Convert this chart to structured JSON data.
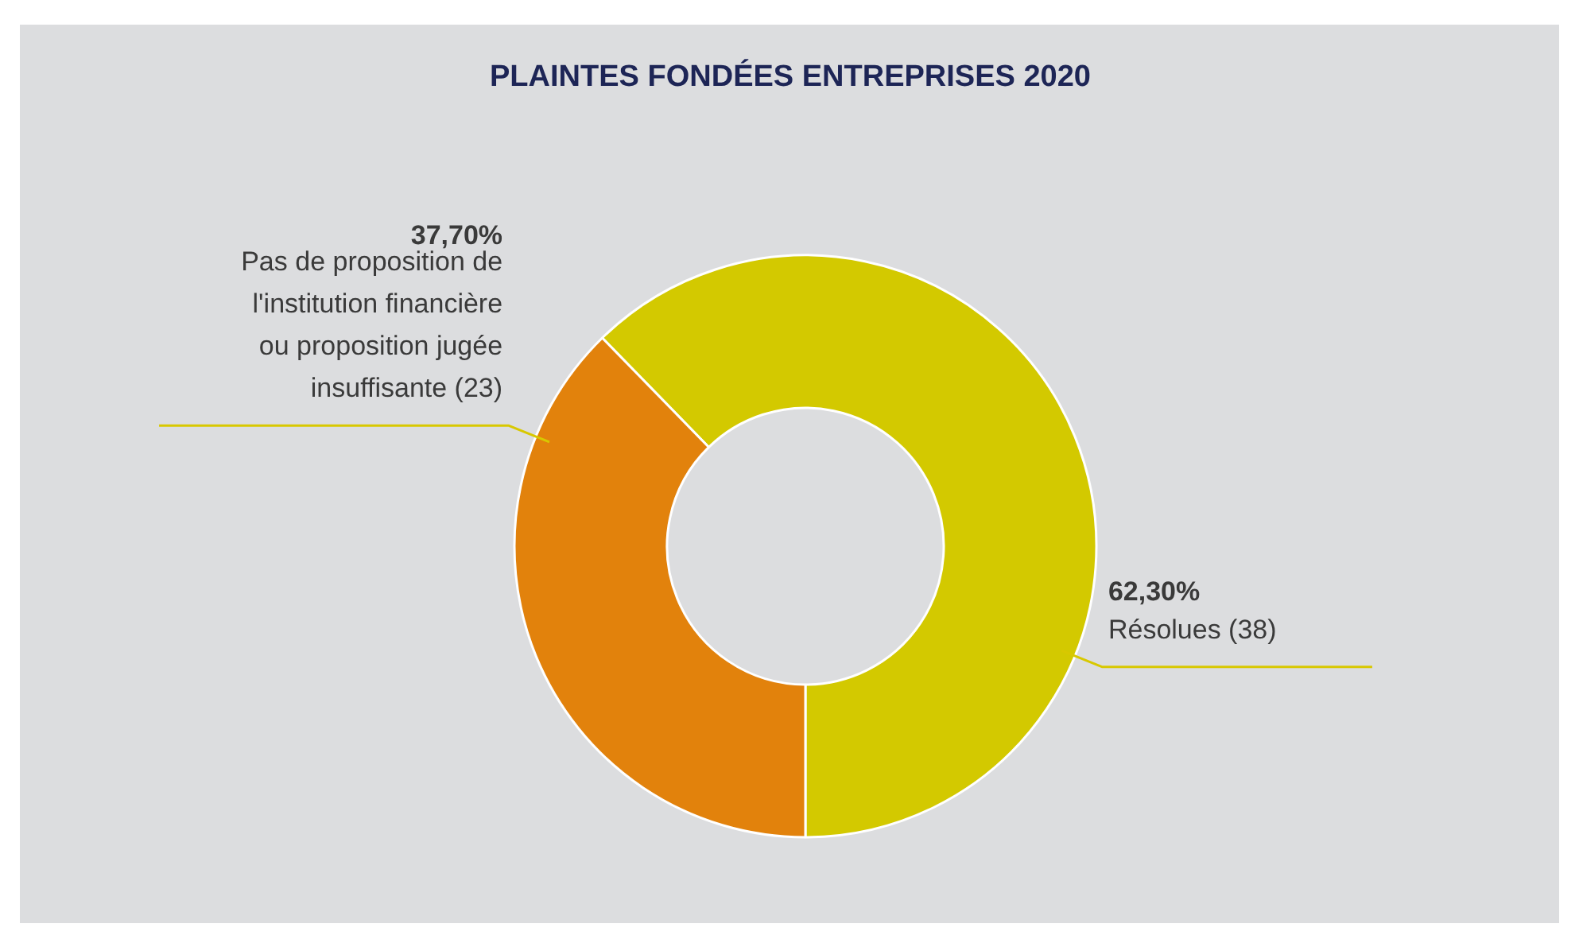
{
  "chart_data": {
    "type": "donut",
    "title": "PLAINTES FONDÉES ENTREPRISES 2020",
    "categories": [
      "Résolues (38)",
      "Pas de proposition de l'institution financière ou proposition jugée insuffisante (23)"
    ],
    "values": [
      62.3,
      37.7
    ],
    "colors": [
      "#d3c900",
      "#e2820c"
    ],
    "value_labels": [
      "62,30%",
      "37,70%"
    ]
  }
}
